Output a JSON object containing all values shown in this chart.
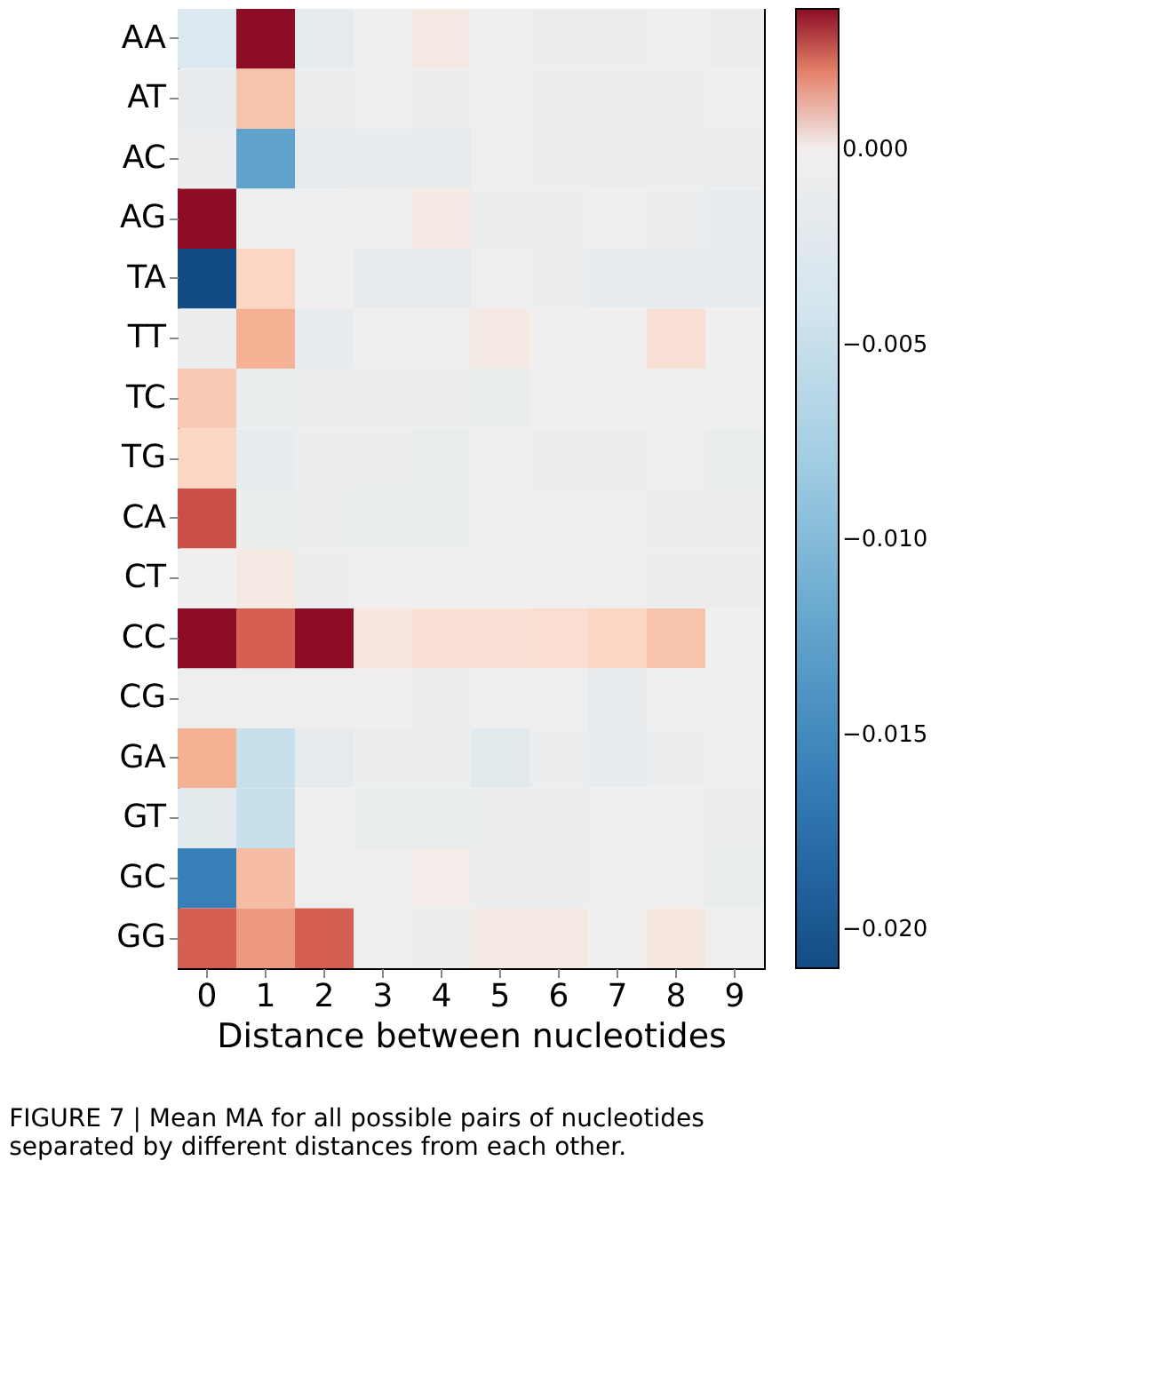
{
  "chart_data": {
    "type": "heatmap",
    "xlabel": "Distance between nucleotides",
    "categories": [
      "0",
      "1",
      "2",
      "3",
      "4",
      "5",
      "6",
      "7",
      "8",
      "9"
    ],
    "y_categories": [
      "AA",
      "AT",
      "AC",
      "AG",
      "TA",
      "TT",
      "TC",
      "TG",
      "CA",
      "CT",
      "CC",
      "CG",
      "GA",
      "GT",
      "GC",
      "GG"
    ],
    "cells": [
      [
        -0.003,
        0.0036,
        -0.0015,
        -0.0005,
        0.0002,
        -0.0005,
        -0.0008,
        -0.0008,
        -0.0002,
        -0.0008
      ],
      [
        -0.0015,
        0.0011,
        -0.0008,
        -0.0005,
        -0.0008,
        -0.0005,
        -0.0008,
        -0.0008,
        -0.0008,
        -0.0003
      ],
      [
        -0.0008,
        -0.0125,
        -0.0015,
        -0.0012,
        -0.0015,
        -0.0005,
        -0.0008,
        -0.0008,
        -0.0008,
        -0.0008
      ],
      [
        0.0036,
        -0.0002,
        -0.0005,
        -0.0005,
        0.0002,
        -0.0008,
        -0.0008,
        -0.0002,
        -0.0008,
        -0.0012
      ],
      [
        -0.021,
        0.0008,
        -0.0003,
        -0.0012,
        -0.0012,
        -0.0005,
        -0.0008,
        -0.0012,
        -0.0012,
        -0.0012
      ],
      [
        -0.0008,
        0.0014,
        -0.0012,
        -0.0005,
        -0.0005,
        0.0002,
        -0.0003,
        -0.0002,
        0.0005,
        -0.0002
      ],
      [
        0.001,
        -0.001,
        -0.0008,
        -0.0008,
        -0.0008,
        -0.001,
        -0.0005,
        -0.0005,
        -0.0005,
        -0.0003
      ],
      [
        0.0008,
        -0.0012,
        -0.0008,
        -0.0008,
        -0.001,
        -0.0005,
        -0.0008,
        -0.0008,
        -0.0005,
        -0.001
      ],
      [
        0.0026,
        -0.001,
        -0.0008,
        -0.001,
        -0.001,
        -0.0005,
        -0.0005,
        -0.0005,
        -0.0008,
        -0.0008
      ],
      [
        -0.0002,
        0.0002,
        -0.0008,
        -0.0003,
        -0.0003,
        -0.0003,
        -0.0003,
        -0.0005,
        -0.0008,
        -0.0008
      ],
      [
        0.0036,
        0.0024,
        0.0036,
        0.0003,
        0.0005,
        0.0005,
        0.0006,
        0.0008,
        0.0011,
        -0.0002
      ],
      [
        -0.0005,
        -0.0005,
        -0.0005,
        -0.0003,
        -0.0008,
        -0.0005,
        -0.0005,
        -0.0015,
        -0.0005,
        -0.0003
      ],
      [
        0.0014,
        -0.005,
        -0.0015,
        -0.0008,
        -0.0008,
        -0.002,
        -0.0008,
        -0.0012,
        -0.0008,
        -0.0003
      ],
      [
        -0.002,
        -0.005,
        -0.0005,
        -0.001,
        -0.001,
        -0.0008,
        -0.0008,
        -0.0005,
        -0.0005,
        -0.0008
      ],
      [
        -0.016,
        0.0012,
        -0.0005,
        -0.0005,
        0.0001,
        -0.0008,
        -0.0008,
        -0.0005,
        -0.0005,
        -0.001
      ],
      [
        0.0024,
        0.0017,
        0.0024,
        -0.0003,
        -0.0008,
        0.0002,
        0.0002,
        -0.0003,
        0.0003,
        -0.0005
      ]
    ],
    "clim": [
      -0.021,
      0.0036
    ],
    "cticks": [
      {
        "value": 0.0,
        "label": "0.000"
      },
      {
        "value": -0.005,
        "label": "−0.005"
      },
      {
        "value": -0.01,
        "label": "−0.010"
      },
      {
        "value": -0.015,
        "label": "−0.015"
      },
      {
        "value": -0.02,
        "label": "−0.020"
      }
    ],
    "annotations": [
      "FIGURE 7 | Mean MA for all possible pairs of nucleotides separated by different distances from each other."
    ]
  }
}
